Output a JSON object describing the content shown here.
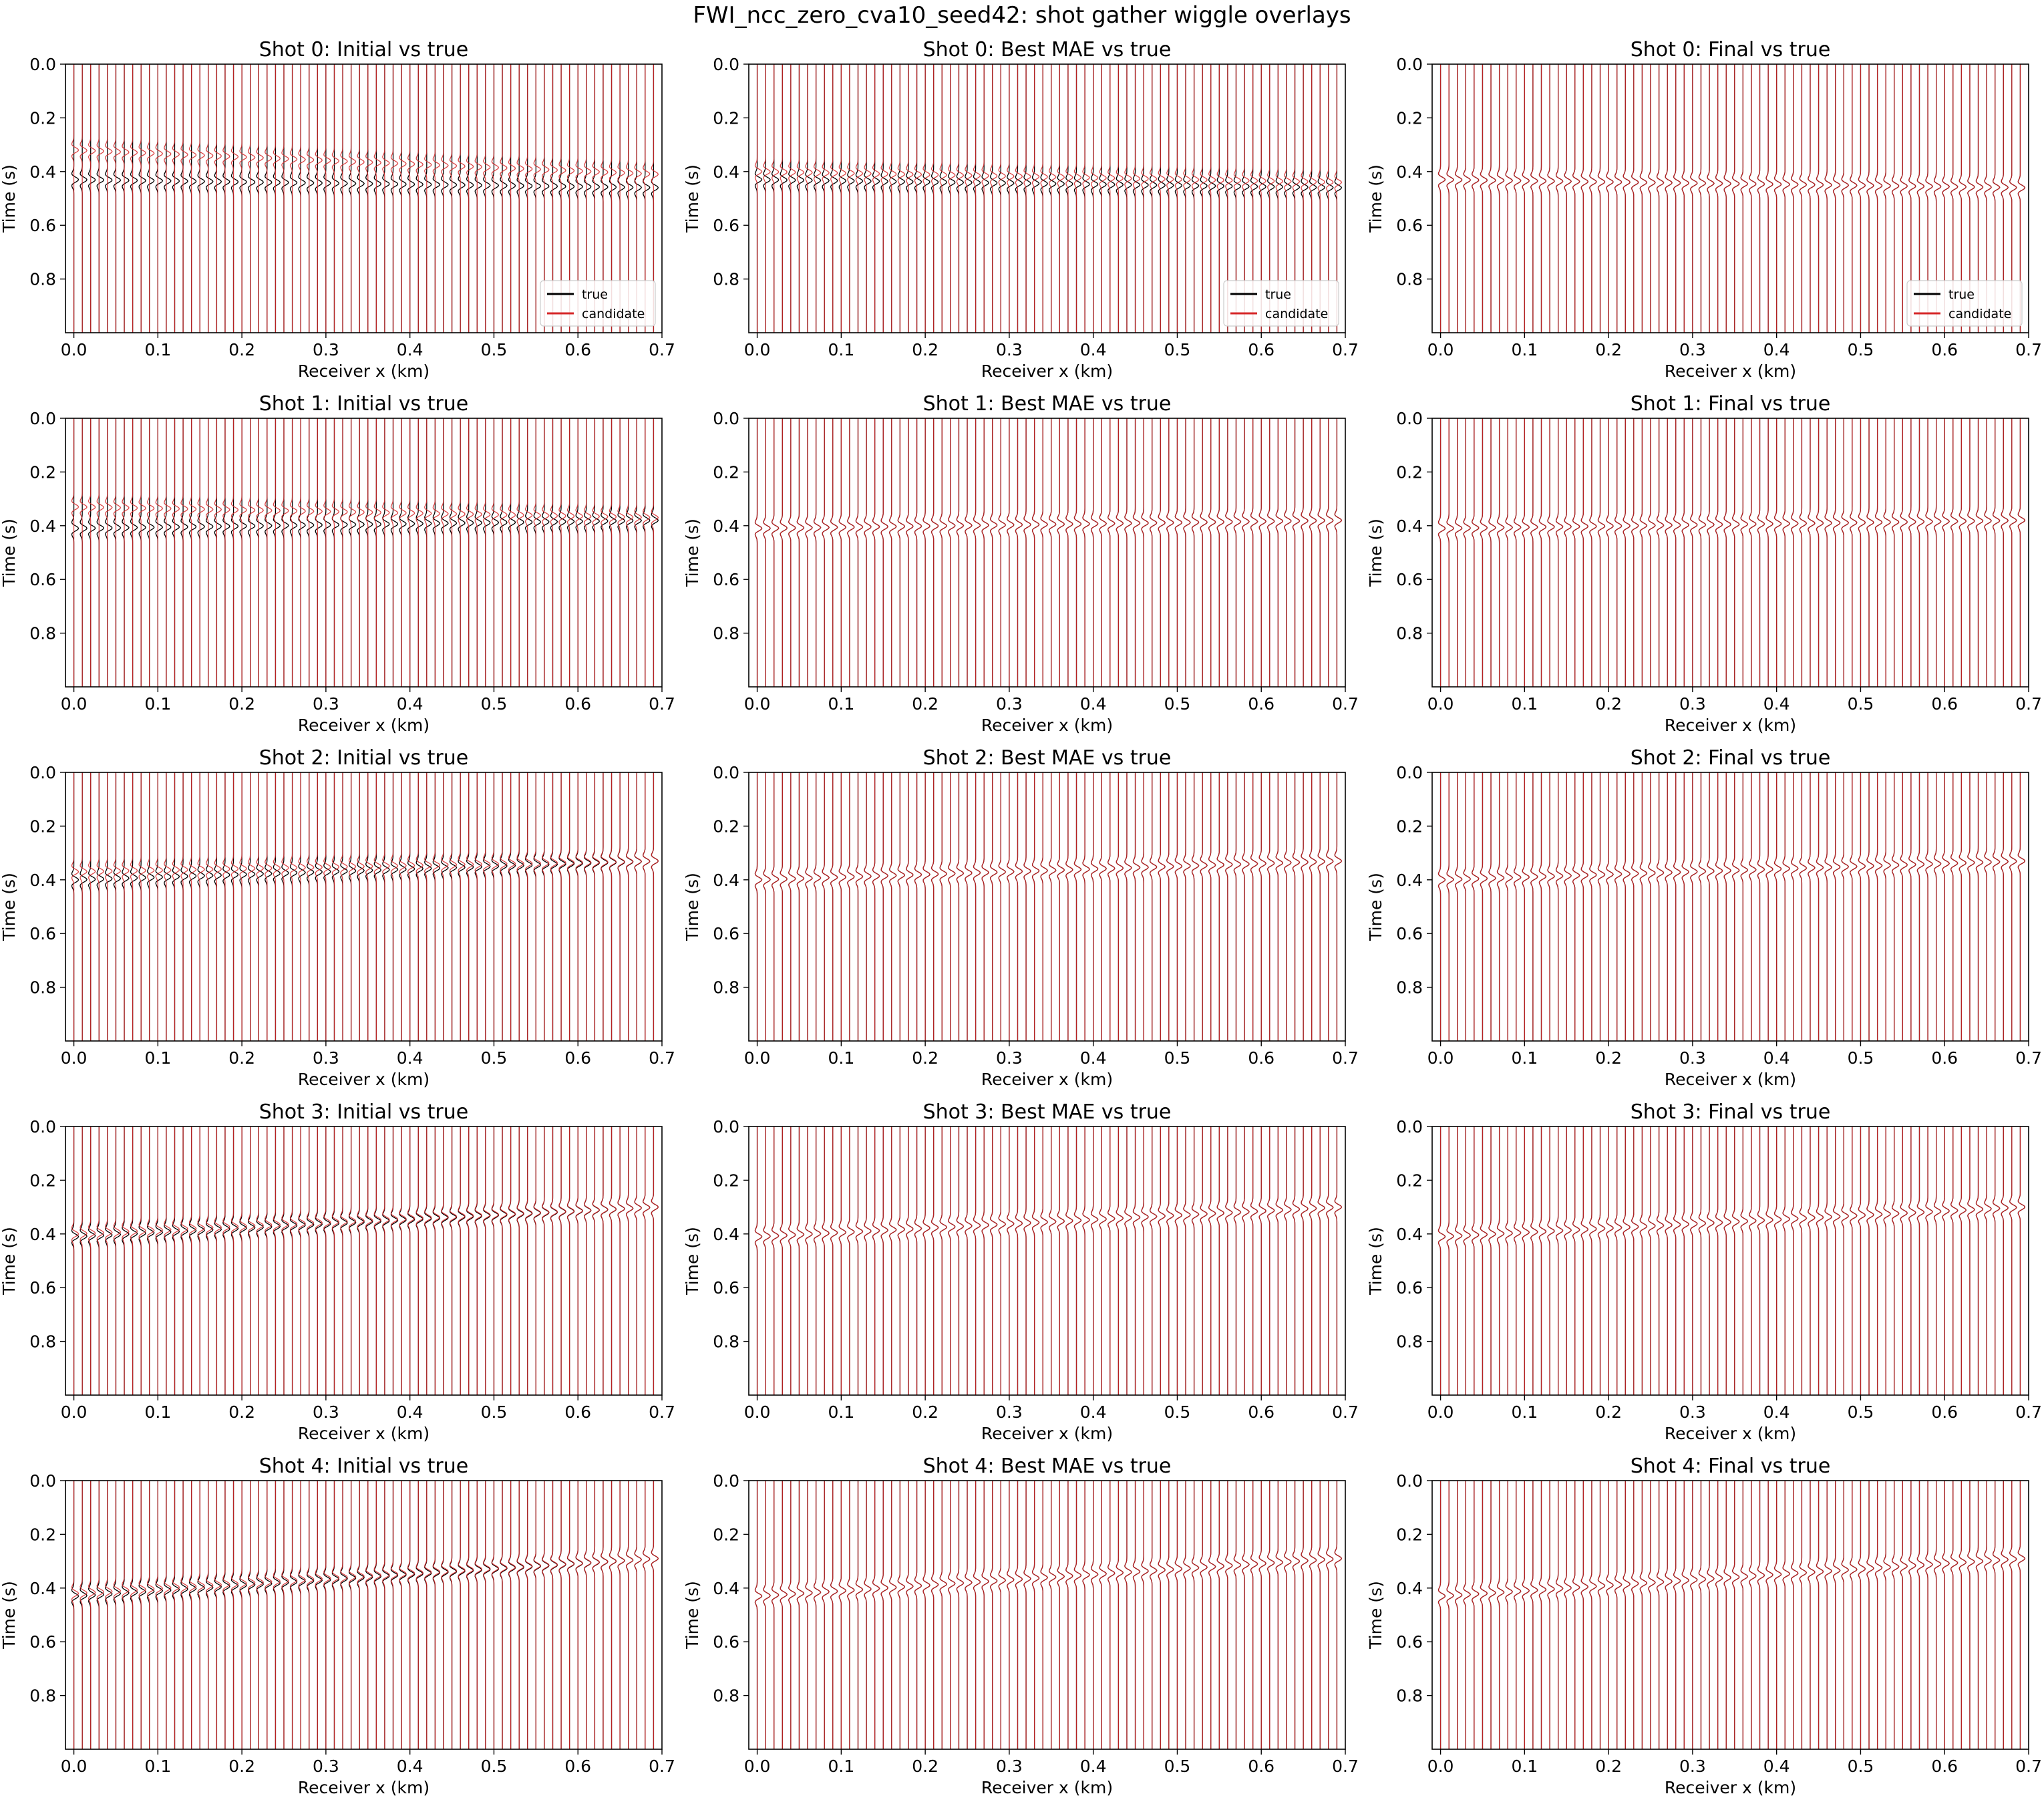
{
  "figure": {
    "title": "FWI_ncc_zero_cva10_seed42: shot gather wiggle overlays"
  },
  "chart_data": {
    "type": "line",
    "subtype": "seismic-wiggle-overlay-grid",
    "grid": {
      "rows": 5,
      "cols": 3
    },
    "colors": {
      "true": "#000000",
      "candidate": "#d62728"
    },
    "shared_axes": {
      "xlabel": "Receiver x (km)",
      "ylabel": "Time (s)",
      "xlim": [
        -0.01,
        0.7
      ],
      "ylim": [
        1.0,
        0.0
      ],
      "y_inverted": true,
      "xticks": [
        "0.0",
        "0.1",
        "0.2",
        "0.3",
        "0.4",
        "0.5",
        "0.6",
        "0.7"
      ],
      "yticks": [
        "0.0",
        "0.2",
        "0.4",
        "0.6",
        "0.8"
      ]
    },
    "receivers": {
      "count": 70,
      "x_start_km": 0.0,
      "x_end_km": 0.69
    },
    "legend": {
      "location": "lower-right",
      "entries": [
        "true",
        "candidate"
      ],
      "shown_on_row": 0
    },
    "panels": [
      {
        "title": "Shot 0: Initial vs true",
        "true_pick_s": [
          0.43,
          0.46
        ],
        "candidate_pick_s": [
          0.32,
          0.41
        ]
      },
      {
        "title": "Shot 0: Best MAE vs true",
        "true_pick_s": [
          0.43,
          0.46
        ],
        "candidate_pick_s": [
          0.4,
          0.44
        ]
      },
      {
        "title": "Shot 0: Final vs true",
        "true_pick_s": [
          0.43,
          0.46
        ],
        "candidate_pick_s": [
          0.43,
          0.46
        ]
      },
      {
        "title": "Shot 1: Initial vs true",
        "true_pick_s": [
          0.41,
          0.38
        ],
        "candidate_pick_s": [
          0.33,
          0.37
        ]
      },
      {
        "title": "Shot 1: Best MAE vs true",
        "true_pick_s": [
          0.41,
          0.38
        ],
        "candidate_pick_s": [
          0.41,
          0.38
        ]
      },
      {
        "title": "Shot 1: Final vs true",
        "true_pick_s": [
          0.41,
          0.38
        ],
        "candidate_pick_s": [
          0.41,
          0.38
        ]
      },
      {
        "title": "Shot 2: Initial vs true",
        "true_pick_s": [
          0.4,
          0.33
        ],
        "candidate_pick_s": [
          0.37,
          0.33
        ]
      },
      {
        "title": "Shot 2: Best MAE vs true",
        "true_pick_s": [
          0.4,
          0.33
        ],
        "candidate_pick_s": [
          0.4,
          0.33
        ]
      },
      {
        "title": "Shot 2: Final vs true",
        "true_pick_s": [
          0.4,
          0.33
        ],
        "candidate_pick_s": [
          0.4,
          0.33
        ]
      },
      {
        "title": "Shot 3: Initial vs true",
        "true_pick_s": [
          0.41,
          0.3
        ],
        "candidate_pick_s": [
          0.4,
          0.3
        ]
      },
      {
        "title": "Shot 3: Best MAE vs true",
        "true_pick_s": [
          0.41,
          0.3
        ],
        "candidate_pick_s": [
          0.41,
          0.3
        ]
      },
      {
        "title": "Shot 3: Final vs true",
        "true_pick_s": [
          0.41,
          0.3
        ],
        "candidate_pick_s": [
          0.41,
          0.3
        ]
      },
      {
        "title": "Shot 4: Initial vs true",
        "true_pick_s": [
          0.43,
          0.29
        ],
        "candidate_pick_s": [
          0.42,
          0.29
        ]
      },
      {
        "title": "Shot 4: Best MAE vs true",
        "true_pick_s": [
          0.43,
          0.29
        ],
        "candidate_pick_s": [
          0.43,
          0.29
        ]
      },
      {
        "title": "Shot 4: Final vs true",
        "true_pick_s": [
          0.43,
          0.29
        ],
        "candidate_pick_s": [
          0.43,
          0.29
        ]
      }
    ]
  }
}
